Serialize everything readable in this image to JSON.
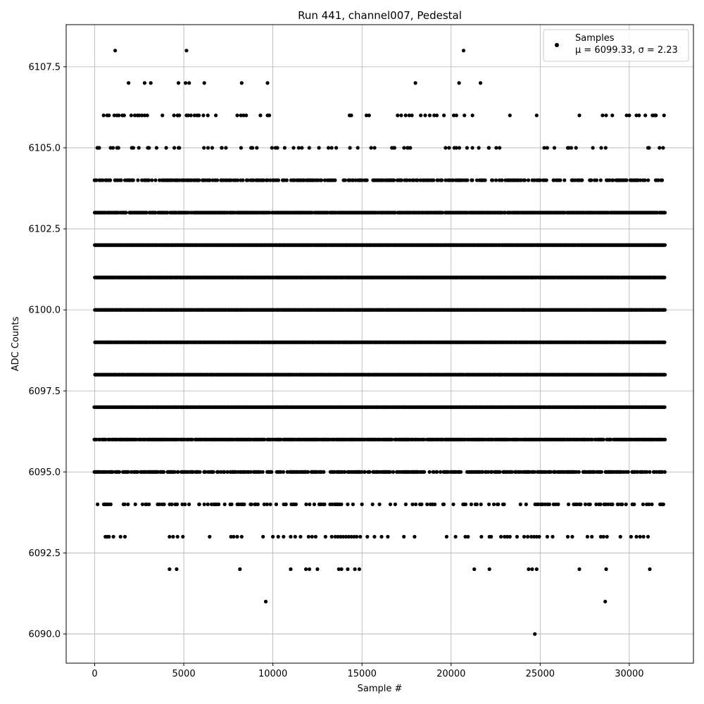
{
  "chart_data": {
    "type": "scatter",
    "title": "Run 441, channel007, Pedestal",
    "xlabel": "Sample #",
    "ylabel": "ADC Counts",
    "xlim": [
      -1600,
      33600
    ],
    "ylim": [
      6089.1,
      6108.8
    ],
    "grid": true,
    "legend_position": "top-right",
    "marker_color": "#000000",
    "xticks": [
      0,
      5000,
      10000,
      15000,
      20000,
      25000,
      30000
    ],
    "xtick_labels": [
      "0",
      "5000",
      "10000",
      "15000",
      "20000",
      "25000",
      "30000"
    ],
    "yticks": [
      6090.0,
      6092.5,
      6095.0,
      6097.5,
      6100.0,
      6102.5,
      6105.0,
      6107.5
    ],
    "ytick_labels": [
      "6090.0",
      "6092.5",
      "6095.0",
      "6097.5",
      "6100.0",
      "6102.5",
      "6105.0",
      "6107.5"
    ],
    "x_range": [
      0,
      32000
    ],
    "series": [
      {
        "name": "Samples",
        "stats_label": "μ = 6099.33, σ = 2.23",
        "levels": [
          {
            "y": 6108,
            "x": [
              1150,
              5150,
              20700
            ]
          },
          {
            "y": 6107,
            "x": [
              1900,
              2800,
              3150,
              4700,
              5100,
              5300,
              6150,
              8250,
              9700,
              18000,
              20450,
              21650
            ]
          },
          {
            "y": 6106,
            "x": [
              500,
              700,
              800,
              1100,
              1250,
              1350,
              1550,
              1650,
              2050,
              2250,
              2400,
              2500,
              2650,
              2800,
              2950,
              3800,
              4450,
              4650,
              4750,
              5150,
              5250,
              5400,
              5600,
              5750,
              5850,
              6100,
              6350,
              6800,
              8000,
              8200,
              8350,
              8500,
              9300,
              9700,
              9800,
              14300,
              14400,
              15250,
              15400,
              17000,
              17200,
              17450,
              17650,
              17800,
              18300,
              18550,
              18800,
              19050,
              19200,
              19600,
              20150,
              20300,
              20750,
              21200,
              23300,
              24800,
              27200,
              28500,
              28700,
              29050,
              29850,
              30000,
              30400,
              30550,
              30900,
              31300,
              31400,
              31500,
              31950
            ]
          },
          {
            "y": 6105,
            "density": 0.12,
            "x_range": [
              0,
              32000
            ],
            "seed": 11
          },
          {
            "y": 6104,
            "density": 0.45,
            "x_range": [
              0,
              32000
            ],
            "seed": 12
          },
          {
            "y": 6103,
            "density": 0.85,
            "x_range": [
              0,
              32000
            ],
            "seed": 13
          },
          {
            "y": 6102,
            "density": 1.0,
            "x_range": [
              0,
              32000
            ],
            "seed": 14
          },
          {
            "y": 6101,
            "density": 1.0,
            "x_range": [
              0,
              32000
            ],
            "seed": 15
          },
          {
            "y": 6100,
            "density": 1.0,
            "x_range": [
              0,
              32000
            ],
            "seed": 16
          },
          {
            "y": 6099,
            "density": 1.0,
            "x_range": [
              0,
              32000
            ],
            "seed": 17
          },
          {
            "y": 6098,
            "density": 1.0,
            "x_range": [
              0,
              32000
            ],
            "seed": 18
          },
          {
            "y": 6097,
            "density": 1.0,
            "x_range": [
              0,
              32000
            ],
            "seed": 19
          },
          {
            "y": 6096,
            "density": 0.85,
            "x_range": [
              0,
              32000
            ],
            "seed": 20
          },
          {
            "y": 6095,
            "density": 0.55,
            "x_range": [
              0,
              32000
            ],
            "seed": 21
          },
          {
            "y": 6094,
            "density": 0.22,
            "x_range": [
              0,
              32000
            ],
            "seed": 22
          },
          {
            "y": 6093,
            "x": [
              600,
              700,
              800,
              1050,
              1450,
              1700,
              4200,
              4400,
              4650,
              4950,
              6450,
              7650,
              7800,
              8000,
              8250,
              9450,
              10000,
              10300,
              10600,
              11000,
              11250,
              11550,
              12000,
              12200,
              12400,
              12950,
              13300,
              13500,
              13650,
              13800,
              13950,
              14100,
              14250,
              14400,
              14550,
              14700,
              14900,
              15300,
              15700,
              16100,
              16450,
              17350,
              17950,
              19750,
              20250,
              20800,
              20950,
              21700,
              22150,
              22250,
              22800,
              23000,
              23150,
              23300,
              23700,
              24100,
              24300,
              24500,
              24650,
              24800,
              24950,
              25400,
              25700,
              26550,
              26800,
              27650,
              27900,
              28400,
              28550,
              28750,
              29500,
              30100,
              30400,
              30600,
              30800,
              31050
            ]
          },
          {
            "y": 6092,
            "x": [
              4200,
              4600,
              8150,
              11000,
              11850,
              12050,
              12500,
              13700,
              13850,
              14200,
              14600,
              14850,
              21300,
              22150,
              24350,
              24550,
              24800,
              27200,
              28700,
              31150
            ]
          },
          {
            "y": 6091,
            "x": [
              9600,
              28650
            ]
          },
          {
            "y": 6090,
            "x": [
              24700
            ]
          }
        ]
      }
    ]
  }
}
